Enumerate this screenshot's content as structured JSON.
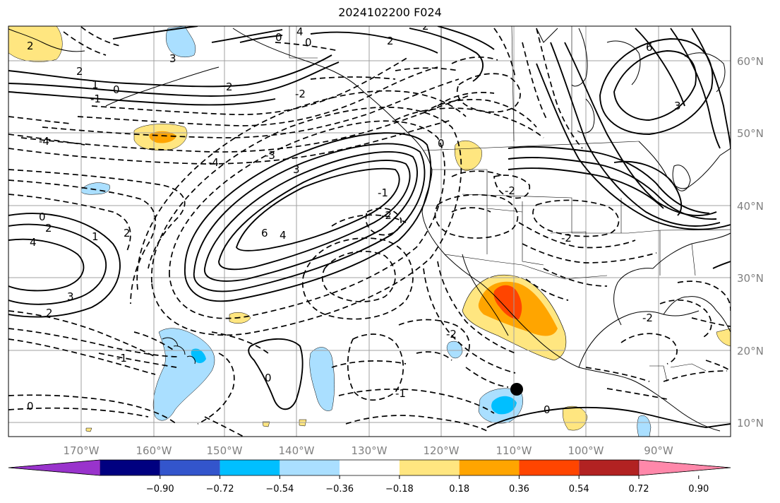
{
  "title": "2024102200 F024",
  "longitude_labels": [
    "170°W",
    "160°W",
    "150°W",
    "140°W",
    "130°W",
    "120°W",
    "110°W",
    "100°W",
    "90°W"
  ],
  "latitude_labels": [
    "60°N",
    "50°N",
    "40°N",
    "30°N",
    "20°N",
    "10°N"
  ],
  "colorbar": {
    "colors": [
      "#9933cc",
      "#000080",
      "#3355cc",
      "#00bfff",
      "#aadfff",
      "#ffffff",
      "#ffe680",
      "#ffa500",
      "#ff4500",
      "#b22222",
      "#ff88aa"
    ],
    "ticks": [
      "−0.90",
      "−0.72",
      "−0.54",
      "−0.36",
      "−0.18",
      "0.18",
      "0.36",
      "0.54",
      "0.72",
      "0.90"
    ]
  },
  "contour_labels": [
    "2",
    "0",
    "3",
    "2",
    "1",
    "0",
    "-1",
    "2",
    "4",
    "-4",
    "-2",
    "0",
    "2",
    "6",
    "4",
    "3",
    "2",
    "1",
    "0",
    "-3",
    "-4",
    "2",
    "-1",
    "0",
    "4",
    "3",
    "-2",
    "2",
    "0",
    "-2",
    "-1",
    "0",
    "-2",
    "-2",
    "-2",
    "-1",
    "0",
    "6",
    "3",
    "2"
  ],
  "marker": {
    "lon": -109,
    "lat": 14.5
  }
}
